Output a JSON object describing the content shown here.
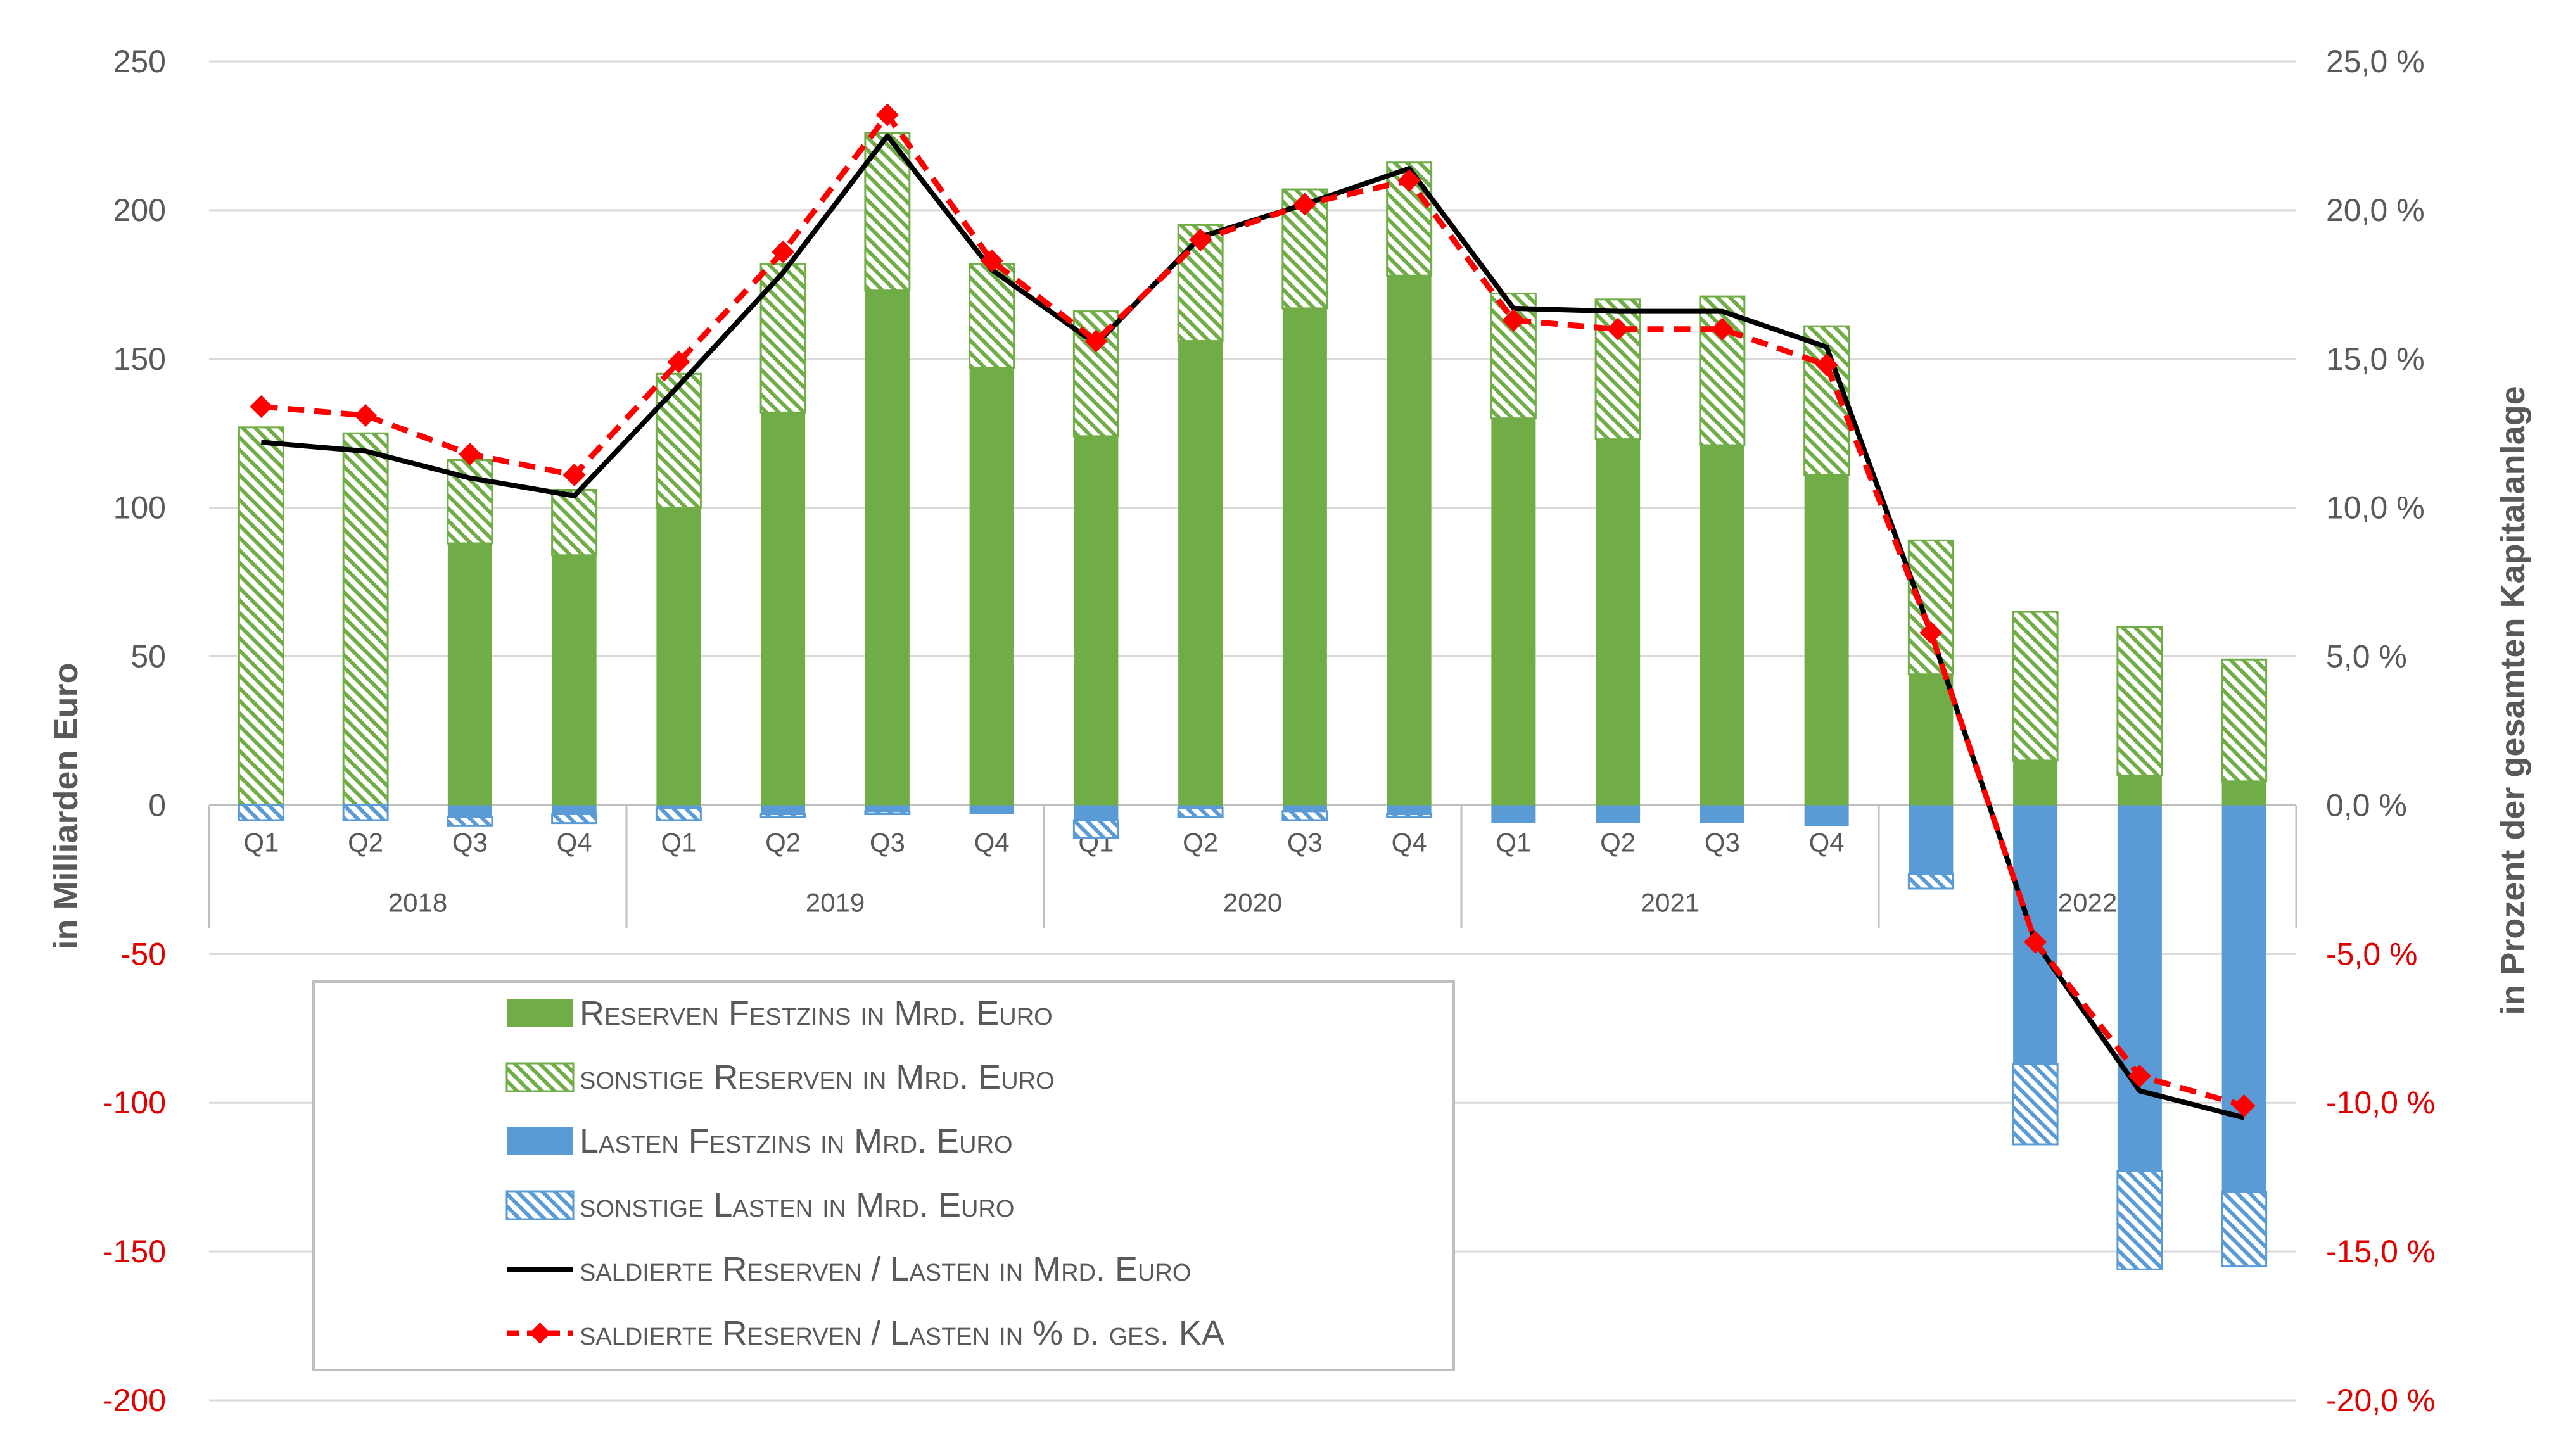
{
  "chart_data": {
    "type": "bar",
    "stacked": true,
    "grid": true,
    "legend_position": "bottom-left",
    "ylabel": "in Milliarden Euro",
    "y2label": "in Prozent der gesamten Kapitalanlage",
    "ylim": [
      -200,
      250
    ],
    "y2lim": [
      -20,
      25
    ],
    "y_ticks": [
      "250",
      "200",
      "150",
      "100",
      "50",
      "0",
      "-50",
      "-100",
      "-150",
      "-200"
    ],
    "y2_ticks": [
      "25,0 %",
      "20,0 %",
      "15,0 %",
      "10,0 %",
      "5,0 %",
      "0,0 %",
      "-5,0 %",
      "-10,0 %",
      "-15,0 %",
      "-20,0 %"
    ],
    "years": [
      "2018",
      "2019",
      "2020",
      "2021",
      "2022"
    ],
    "categories": [
      "Q1",
      "Q2",
      "Q3",
      "Q4",
      "Q1",
      "Q2",
      "Q3",
      "Q4",
      "Q1",
      "Q2",
      "Q3",
      "Q4",
      "Q1",
      "Q2",
      "Q3",
      "Q4",
      "Q1",
      "Q2",
      "Q3",
      "Q4"
    ],
    "series": [
      {
        "name": "Reserven Festzins in Mrd. Euro",
        "kind": "bar",
        "color": "#70ad47",
        "values": [
          0,
          0,
          88,
          84,
          100,
          132,
          173,
          147,
          124,
          156,
          167,
          178,
          130,
          123,
          121,
          111,
          44,
          15,
          10,
          8
        ]
      },
      {
        "name": "sonstige Reserven in Mrd. Euro",
        "kind": "bar",
        "color": "#70ad47",
        "pattern": "hatch",
        "values": [
          127,
          125,
          28,
          22,
          45,
          50,
          53,
          35,
          42,
          39,
          40,
          38,
          42,
          47,
          50,
          50,
          45,
          50,
          50,
          41
        ]
      },
      {
        "name": "Lasten Festzins in Mrd. Euro",
        "kind": "bar",
        "color": "#5b9bd5",
        "values": [
          0,
          0,
          -4,
          -3,
          -1,
          -3,
          -2,
          -3,
          -5,
          -1,
          -2,
          -3,
          -6,
          -6,
          -6,
          -7,
          -23,
          -87,
          -123,
          -130
        ]
      },
      {
        "name": "sonstige Lasten in Mrd. Euro",
        "kind": "bar",
        "color": "#5b9bd5",
        "pattern": "hatch",
        "values": [
          -5,
          -5,
          -3,
          -3,
          -4,
          -1,
          -1,
          0,
          -6,
          -3,
          -3,
          -1,
          0,
          0,
          0,
          0,
          -5,
          -27,
          -33,
          -25
        ]
      },
      {
        "name": "saldierte Reserven / Lasten in Mrd. Euro",
        "kind": "line",
        "color": "#000000",
        "values": [
          122,
          119,
          110,
          104,
          141,
          179,
          225,
          180,
          155,
          191,
          202,
          214,
          167,
          166,
          166,
          154,
          58,
          -46,
          -96,
          -105
        ]
      },
      {
        "name": "saldierte Reserven / Lasten in % d. ges. KA",
        "kind": "line",
        "axis": "right",
        "color": "#ff0000",
        "dashed": true,
        "marker": "diamond",
        "values": [
          13.4,
          13.1,
          11.8,
          11.1,
          14.9,
          18.6,
          23.2,
          18.3,
          15.6,
          19.0,
          20.2,
          21.0,
          16.3,
          16.0,
          16.0,
          14.8,
          5.8,
          -4.6,
          -9.1,
          -10.1
        ]
      }
    ]
  }
}
